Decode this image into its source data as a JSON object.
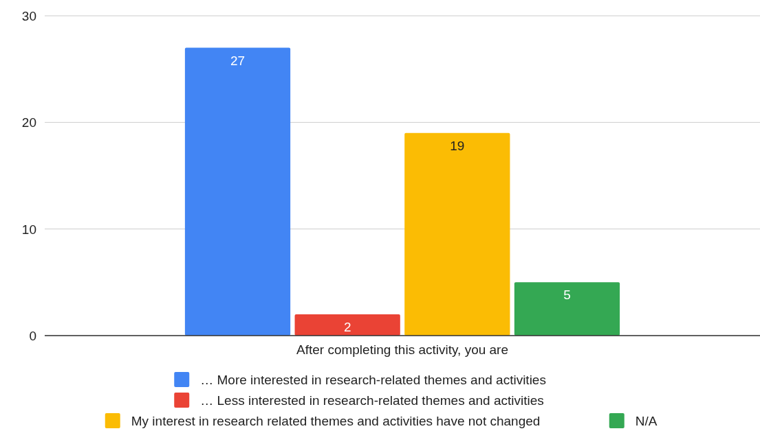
{
  "chart_data": {
    "type": "bar",
    "categories": [
      "After completing this activity, you are"
    ],
    "series": [
      {
        "name": "… More interested in research-related themes and activities",
        "color": "#4285f4",
        "values": [
          27
        ]
      },
      {
        "name": "… Less interested in research-related themes and activities",
        "color": "#ea4335",
        "values": [
          2
        ]
      },
      {
        "name": "My interest in research related themes and activities have not changed",
        "color": "#fbbc04",
        "values": [
          19
        ]
      },
      {
        "name": "N/A",
        "color": "#34a853",
        "values": [
          5
        ]
      }
    ],
    "ylim": [
      0,
      30
    ],
    "yticks": [
      0,
      10,
      20,
      30
    ],
    "grid": "y",
    "legend": "bottom",
    "data_labels": true
  }
}
